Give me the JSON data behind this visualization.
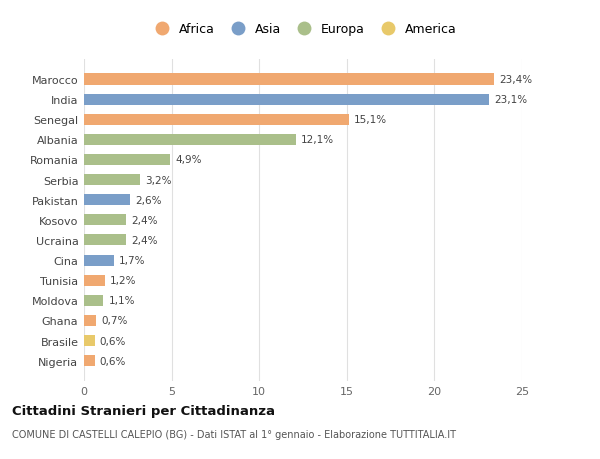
{
  "countries": [
    "Marocco",
    "India",
    "Senegal",
    "Albania",
    "Romania",
    "Serbia",
    "Pakistan",
    "Kosovo",
    "Ucraina",
    "Cina",
    "Tunisia",
    "Moldova",
    "Ghana",
    "Brasile",
    "Nigeria"
  ],
  "values": [
    23.4,
    23.1,
    15.1,
    12.1,
    4.9,
    3.2,
    2.6,
    2.4,
    2.4,
    1.7,
    1.2,
    1.1,
    0.7,
    0.6,
    0.6
  ],
  "labels": [
    "23,4%",
    "23,1%",
    "15,1%",
    "12,1%",
    "4,9%",
    "3,2%",
    "2,6%",
    "2,4%",
    "2,4%",
    "1,7%",
    "1,2%",
    "1,1%",
    "0,7%",
    "0,6%",
    "0,6%"
  ],
  "continents": [
    "Africa",
    "Asia",
    "Africa",
    "Europa",
    "Europa",
    "Europa",
    "Asia",
    "Europa",
    "Europa",
    "Asia",
    "Africa",
    "Europa",
    "Africa",
    "America",
    "Africa"
  ],
  "continent_colors": {
    "Africa": "#F0A870",
    "Asia": "#7A9EC8",
    "Europa": "#AABF8A",
    "America": "#E8C96A"
  },
  "legend_order": [
    "Africa",
    "Asia",
    "Europa",
    "America"
  ],
  "title": "Cittadini Stranieri per Cittadinanza",
  "subtitle": "COMUNE DI CASTELLI CALEPIO (BG) - Dati ISTAT al 1° gennaio - Elaborazione TUTTITALIA.IT",
  "xlim": [
    0,
    25
  ],
  "xticks": [
    0,
    5,
    10,
    15,
    20,
    25
  ],
  "background_color": "#ffffff",
  "grid_color": "#e0e0e0",
  "bar_height": 0.55
}
